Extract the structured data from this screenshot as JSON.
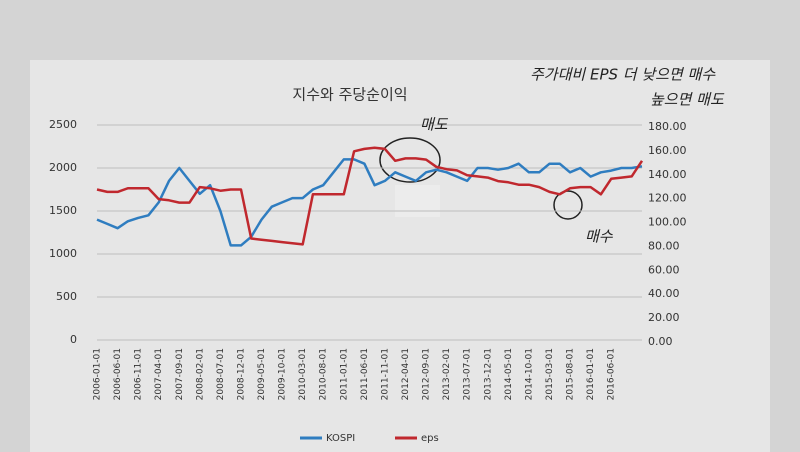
{
  "chart_data": {
    "type": "line",
    "title": "지수와 주당순이익",
    "categories": [
      "2006-01-01",
      null,
      "2006-06-01",
      null,
      "2006-11-01",
      null,
      "2007-04-01",
      null,
      "2007-09-01",
      null,
      "2008-02-01",
      null,
      "2008-07-01",
      null,
      "2008-12-01",
      null,
      "2009-05-01",
      null,
      "2009-10-01",
      null,
      "2010-03-01",
      null,
      "2010-08-01",
      null,
      "2011-01-01",
      null,
      "2011-06-01",
      null,
      "2011-11-01",
      null,
      "2012-04-01",
      null,
      "2012-09-01",
      null,
      "2013-02-01",
      null,
      "2013-07-01",
      null,
      "2013-12-01",
      null,
      "2014-05-01",
      null,
      "2014-10-01",
      null,
      "2015-03-01",
      null,
      "2015-08-01",
      null,
      "2016-01-01",
      null,
      "2016-06-01",
      null,
      null,
      null
    ],
    "series": [
      {
        "name": "KOSPI",
        "color": "#2f7dc0",
        "axis": "y",
        "values": [
          1400,
          1350,
          1300,
          1380,
          1420,
          1450,
          1600,
          1850,
          2000,
          1850,
          1700,
          1800,
          1500,
          1100,
          1100,
          1200,
          1400,
          1550,
          1600,
          1650,
          1650,
          1750,
          1800,
          1950,
          2100,
          2100,
          2050,
          1800,
          1850,
          1950,
          1900,
          1850,
          1950,
          1980,
          1950,
          1900,
          1850,
          2000,
          2000,
          1980,
          2000,
          2050,
          1950,
          1950,
          2050,
          2050,
          1950,
          2000,
          1900,
          1950,
          1970,
          2000,
          2000,
          2020
        ]
      },
      {
        "name": "eps",
        "color": "#c0282e",
        "axis": "y2",
        "values": [
          126,
          124,
          124,
          127,
          127,
          127,
          118,
          117,
          115,
          115,
          128,
          127,
          125,
          126,
          126,
          85,
          84,
          83,
          82,
          81,
          80,
          122,
          122,
          122,
          122,
          158,
          160,
          161,
          160,
          150,
          152,
          152,
          151,
          145,
          143,
          142,
          138,
          137,
          136,
          133,
          132,
          130,
          130,
          128,
          124,
          122,
          127,
          128,
          128,
          122,
          135,
          136,
          137,
          150
        ]
      }
    ],
    "ylim": [
      0,
      2500
    ],
    "yticks": [
      0,
      500,
      1000,
      1500,
      2000,
      2500
    ],
    "y2lim": [
      0,
      180
    ],
    "y2ticks": [
      {
        "value": 0,
        "label": "0.00"
      },
      {
        "value": 20,
        "label": "20.00"
      },
      {
        "value": 40,
        "label": "40.00"
      },
      {
        "value": 60,
        "label": "60.00"
      },
      {
        "value": 80,
        "label": "80.00"
      },
      {
        "value": 100,
        "label": "100.00"
      },
      {
        "value": 120,
        "label": "120.00"
      },
      {
        "value": 140,
        "label": "140.00"
      },
      {
        "value": 160,
        "label": "160.00"
      },
      {
        "value": 180,
        "label": "180.00"
      }
    ],
    "grid": true,
    "legend": "bottom",
    "annotations": [
      "주가대비 EPS 더 낮으면 매수",
      "높으면 매도",
      "매도",
      "매수"
    ]
  }
}
